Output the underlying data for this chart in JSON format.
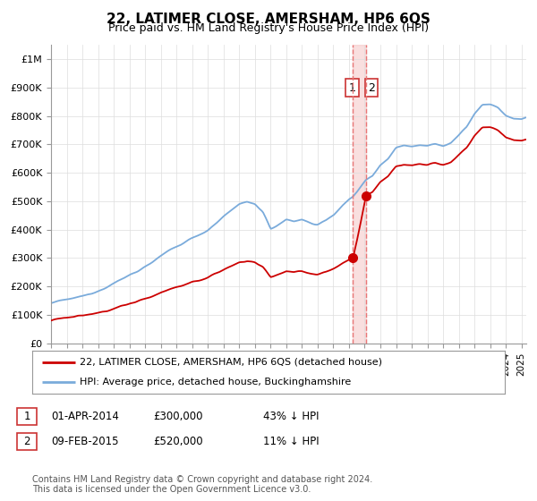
{
  "title": "22, LATIMER CLOSE, AMERSHAM, HP6 6QS",
  "subtitle": "Price paid vs. HM Land Registry's House Price Index (HPI)",
  "footer": "Contains HM Land Registry data © Crown copyright and database right 2024.\nThis data is licensed under the Open Government Licence v3.0.",
  "legend_line1": "22, LATIMER CLOSE, AMERSHAM, HP6 6QS (detached house)",
  "legend_line2": "HPI: Average price, detached house, Buckinghamshire",
  "transaction1_date": "01-APR-2014",
  "transaction1_price": "£300,000",
  "transaction1_hpi": "43% ↓ HPI",
  "transaction2_date": "09-FEB-2015",
  "transaction2_price": "£520,000",
  "transaction2_hpi": "11% ↓ HPI",
  "red_color": "#cc0000",
  "blue_color": "#7aabdb",
  "dashed_line_color": "#e87777",
  "shade_color": "#f5c0c0",
  "grid_color": "#dddddd",
  "background_color": "#ffffff",
  "ylim": [
    0,
    1050000
  ],
  "yticks": [
    0,
    100000,
    200000,
    300000,
    400000,
    500000,
    600000,
    700000,
    800000,
    900000,
    1000000
  ],
  "ytick_labels": [
    "£0",
    "£100K",
    "£200K",
    "£300K",
    "£400K",
    "£500K",
    "£600K",
    "£700K",
    "£800K",
    "£900K",
    "£1M"
  ],
  "transaction1_x": 2014.25,
  "transaction1_y": 300000,
  "transaction2_x": 2015.08,
  "transaction2_y": 520000,
  "xlim_left": 1995,
  "xlim_right": 2025.3
}
